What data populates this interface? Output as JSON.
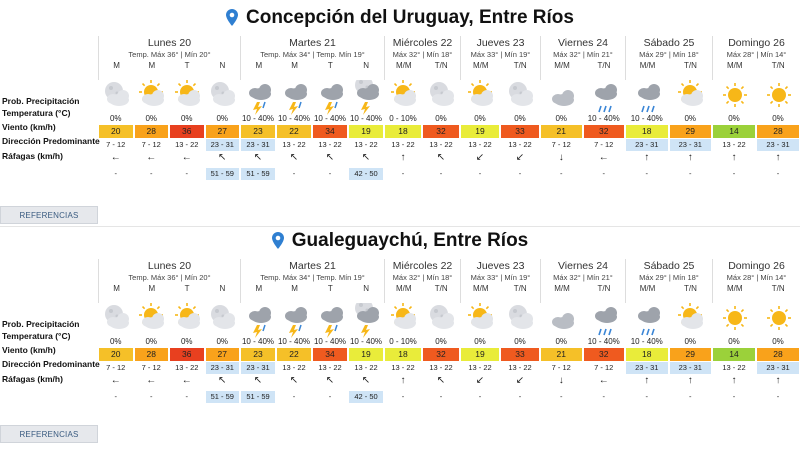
{
  "locations": [
    {
      "title": "Concepción del Uruguay, Entre Ríos",
      "references_label": "REFERENCIAS"
    },
    {
      "title": "Gualeguaychú, Entre Ríos",
      "references_label": "REFERENCIAS"
    }
  ],
  "row_labels": {
    "precip": "Prob. Precipitación",
    "temp": "Temperatura (°C)",
    "wind": "Viento (km/h)",
    "dir": "Dirección Predominante",
    "gust": "Ráfagas (km/h)"
  },
  "days": [
    {
      "name": "Lunes 20",
      "temps": "Temp. Máx 36° | Mín 20°",
      "periods": [
        "M",
        "M",
        "T",
        "N"
      ]
    },
    {
      "name": "Martes 21",
      "temps": "Temp. Máx 34° | Temp. Mín 19°",
      "periods": [
        "M",
        "M",
        "T",
        "N"
      ]
    },
    {
      "name": "Miércoles 22",
      "temps": "Máx 32° | Mín 18°",
      "periods": [
        "M/M",
        "T/N"
      ]
    },
    {
      "name": "Jueves 23",
      "temps": "Máx 33° | Mín 19°",
      "periods": [
        "M/M",
        "T/N"
      ]
    },
    {
      "name": "Viernes 24",
      "temps": "Máx 32° | Mín 21°",
      "periods": [
        "M/M",
        "T/N"
      ]
    },
    {
      "name": "Sábado 25",
      "temps": "Máx 29° | Mín 18°",
      "periods": [
        "M/M",
        "T/N"
      ]
    },
    {
      "name": "Domingo 26",
      "temps": "Máx 28° | Mín 14°",
      "periods": [
        "M/M",
        "T/N"
      ]
    }
  ],
  "slots": [
    {
      "icon": "moon-cloud-icon",
      "precip": "0%",
      "temp": "20",
      "temp_color": "#f5c028",
      "wind": "7 - 12",
      "dir": "←",
      "gust": "-",
      "wind_hl": false,
      "gust_hl": false
    },
    {
      "icon": "sun-cloud-icon",
      "precip": "0%",
      "temp": "28",
      "temp_color": "#f9a21b",
      "wind": "7 - 12",
      "dir": "←",
      "gust": "-",
      "wind_hl": false,
      "gust_hl": false
    },
    {
      "icon": "sun-cloud-icon",
      "precip": "0%",
      "temp": "36",
      "temp_color": "#e8401f",
      "wind": "13 - 22",
      "dir": "←",
      "gust": "-",
      "wind_hl": false,
      "gust_hl": false
    },
    {
      "icon": "moon-cloud-icon",
      "precip": "0%",
      "temp": "27",
      "temp_color": "#f9a21b",
      "wind": "23 - 31",
      "dir": "↖",
      "gust": "51 - 59",
      "wind_hl": true,
      "gust_hl": true
    },
    {
      "icon": "storm-icon",
      "precip": "10 - 40%",
      "temp": "23",
      "temp_color": "#f5c028",
      "wind": "23 - 31",
      "dir": "↖",
      "gust": "51 - 59",
      "wind_hl": true,
      "gust_hl": true
    },
    {
      "icon": "storm-icon",
      "precip": "10 - 40%",
      "temp": "22",
      "temp_color": "#f5c028",
      "wind": "13 - 22",
      "dir": "↖",
      "gust": "-",
      "wind_hl": false,
      "gust_hl": false
    },
    {
      "icon": "storm-icon",
      "precip": "10 - 40%",
      "temp": "34",
      "temp_color": "#ef5a1f",
      "wind": "13 - 22",
      "dir": "↖",
      "gust": "-",
      "wind_hl": false,
      "gust_hl": false
    },
    {
      "icon": "storm-night-icon",
      "precip": "10 - 40%",
      "temp": "19",
      "temp_color": "#e9ec3a",
      "wind": "13 - 22",
      "dir": "↖",
      "gust": "42 - 50",
      "wind_hl": false,
      "gust_hl": true
    },
    {
      "icon": "sun-cloud-icon",
      "precip": "0 - 10%",
      "temp": "18",
      "temp_color": "#e9ec3a",
      "wind": "13 - 22",
      "dir": "↑",
      "gust": "-",
      "wind_hl": false,
      "gust_hl": false
    },
    {
      "icon": "moon-cloud-icon",
      "precip": "0%",
      "temp": "32",
      "temp_color": "#ef5a1f",
      "wind": "13 - 22",
      "dir": "↖",
      "gust": "-",
      "wind_hl": false,
      "gust_hl": false
    },
    {
      "icon": "sun-cloud-icon",
      "precip": "0%",
      "temp": "19",
      "temp_color": "#e9ec3a",
      "wind": "13 - 22",
      "dir": "↙",
      "gust": "-",
      "wind_hl": false,
      "gust_hl": false
    },
    {
      "icon": "moon-cloud-icon",
      "precip": "0%",
      "temp": "33",
      "temp_color": "#ef5a1f",
      "wind": "13 - 22",
      "dir": "↙",
      "gust": "-",
      "wind_hl": false,
      "gust_hl": false
    },
    {
      "icon": "cloud-icon",
      "precip": "0%",
      "temp": "21",
      "temp_color": "#f5c028",
      "wind": "7 - 12",
      "dir": "↓",
      "gust": "-",
      "wind_hl": false,
      "gust_hl": false
    },
    {
      "icon": "rain-icon",
      "precip": "10 - 40%",
      "temp": "32",
      "temp_color": "#ef5a1f",
      "wind": "7 - 12",
      "dir": "←",
      "gust": "-",
      "wind_hl": false,
      "gust_hl": false
    },
    {
      "icon": "rain-icon",
      "precip": "10 - 40%",
      "temp": "18",
      "temp_color": "#e9ec3a",
      "wind": "23 - 31",
      "dir": "↑",
      "gust": "-",
      "wind_hl": true,
      "gust_hl": false
    },
    {
      "icon": "sun-cloud-icon",
      "precip": "0%",
      "temp": "29",
      "temp_color": "#f9a21b",
      "wind": "23 - 31",
      "dir": "↑",
      "gust": "-",
      "wind_hl": true,
      "gust_hl": false
    },
    {
      "icon": "sun-icon",
      "precip": "0%",
      "temp": "14",
      "temp_color": "#9bd13a",
      "wind": "13 - 22",
      "dir": "↑",
      "gust": "-",
      "wind_hl": false,
      "gust_hl": false
    },
    {
      "icon": "sun-icon",
      "precip": "0%",
      "temp": "28",
      "temp_color": "#f9a21b",
      "wind": "23 - 31",
      "dir": "↑",
      "gust": "-",
      "wind_hl": true,
      "gust_hl": false
    }
  ],
  "colors": {
    "accent": "#2f7fd1",
    "highlight": "#cfe4f6",
    "ref_text": "#3a5b80"
  }
}
